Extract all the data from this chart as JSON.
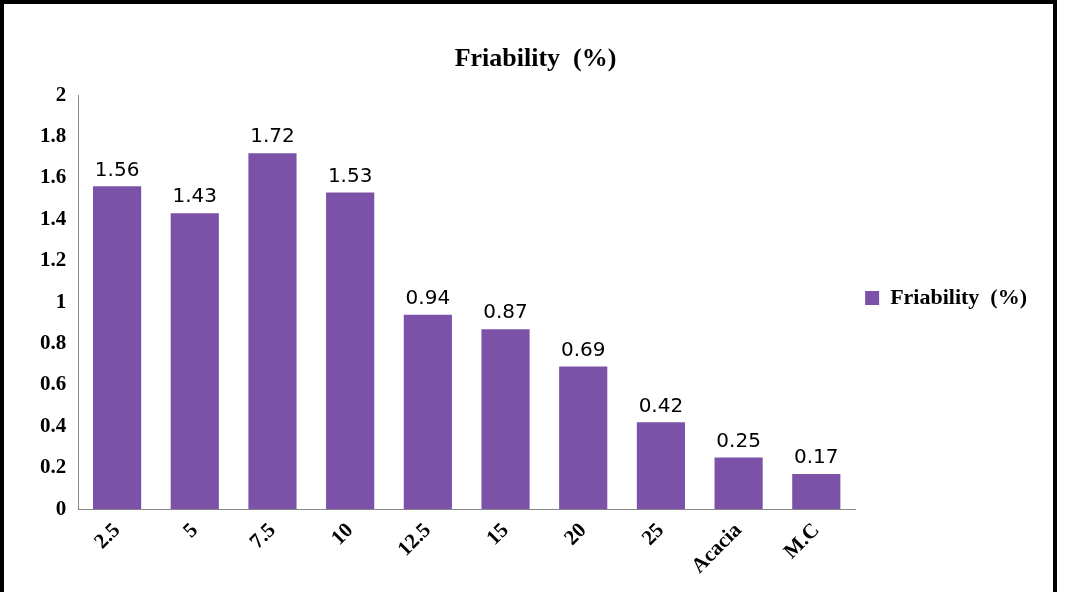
{
  "chart_data": {
    "type": "bar",
    "title": "Friability  (%)",
    "categories": [
      "2.5",
      "5",
      "7.5",
      "10",
      "12.5",
      "15",
      "20",
      "25",
      "Acacia",
      "M.C"
    ],
    "series": [
      {
        "name": "Friability  (%)",
        "color": "#7b52a8",
        "values": [
          1.56,
          1.43,
          1.72,
          1.53,
          0.94,
          0.87,
          0.69,
          0.42,
          0.25,
          0.17
        ]
      }
    ],
    "ylim": [
      0,
      2
    ],
    "yticks": [
      0,
      0.2,
      0.4,
      0.6,
      0.8,
      1,
      1.2,
      1.4,
      1.6,
      1.8,
      2
    ],
    "grid": false,
    "legend": "right",
    "data_labels": true
  }
}
